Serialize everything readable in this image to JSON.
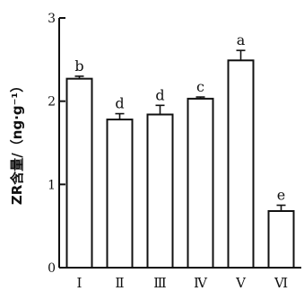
{
  "chart_data": {
    "type": "bar",
    "categories": [
      "Ⅰ",
      "Ⅱ",
      "Ⅲ",
      "Ⅳ",
      "Ⅴ",
      "Ⅵ"
    ],
    "values": [
      2.27,
      1.78,
      1.84,
      2.03,
      2.49,
      0.68
    ],
    "errors": [
      0.03,
      0.07,
      0.11,
      0.02,
      0.12,
      0.07
    ],
    "significance": [
      "b",
      "d",
      "d",
      "c",
      "a",
      "e"
    ],
    "ylabel": "ZR含量/（ng·g⁻¹）",
    "xlabel": "",
    "ylim": [
      0,
      3
    ],
    "yticks": [
      0,
      1,
      2,
      3
    ],
    "ytick_labels": [
      "0",
      "1",
      "2",
      "3"
    ],
    "grid": false,
    "bar_fill": "#ffffff",
    "bar_stroke": "#111111"
  }
}
